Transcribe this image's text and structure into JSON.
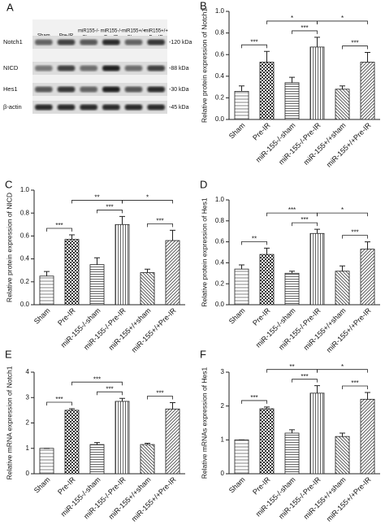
{
  "blot": {
    "panel_label": "A",
    "columns": [
      [
        "Sham"
      ],
      [
        "Pre-IR"
      ],
      [
        "miR155-/-",
        "Sham"
      ],
      [
        "miR155-/-",
        "Pre-IR"
      ],
      [
        "miR155+/+",
        "Sham"
      ],
      [
        "miR155+/+",
        "Pre-IR"
      ]
    ],
    "rows": [
      {
        "name": "Notch1",
        "size": "-120 kDa"
      },
      {
        "name": "NICD",
        "size": "-88 kDa"
      },
      {
        "name": "Hes1",
        "size": "-30 kDa"
      },
      {
        "name": "β-actin",
        "size": "-45 kDa"
      }
    ]
  },
  "chart_data": [
    {
      "type": "bar",
      "panel_label": "B",
      "ylabel": "Relative protein expression of Notch1",
      "categories": [
        "Sham",
        "Pre-IR",
        "miR-155-/-sham",
        "miR-155-/-Pre-IR",
        "miR-155+/+sham",
        "miR-155+/+Pre-IR"
      ],
      "values": [
        0.26,
        0.53,
        0.34,
        0.67,
        0.28,
        0.53
      ],
      "errors": [
        0.05,
        0.1,
        0.05,
        0.09,
        0.03,
        0.09
      ],
      "ylim": [
        0,
        1
      ],
      "yticks": [
        {
          "value": 0,
          "label": "0.0"
        },
        0.2,
        0.4,
        0.6,
        0.8,
        {
          "value": 1,
          "label": "1.0"
        }
      ],
      "color": "#222222",
      "significance": [
        {
          "from": 0,
          "to": 1,
          "label": "***"
        },
        {
          "from": 1,
          "to": 3,
          "label": "*"
        },
        {
          "from": 2,
          "to": 3,
          "label": "***"
        },
        {
          "from": 3,
          "to": 5,
          "label": "*"
        },
        {
          "from": 4,
          "to": 5,
          "label": "***"
        }
      ]
    },
    {
      "type": "bar",
      "panel_label": "C",
      "ylabel": "Relative protein expression of NICD",
      "categories": [
        "Sham",
        "Pre-IR",
        "miR-155-/-sham",
        "miR-155-/-Pre-IR",
        "miR-155+/+sham",
        "miR-155+/+Pre-IR"
      ],
      "values": [
        0.25,
        0.57,
        0.35,
        0.7,
        0.28,
        0.56
      ],
      "errors": [
        0.04,
        0.04,
        0.06,
        0.07,
        0.03,
        0.09
      ],
      "ylim": [
        0,
        1
      ],
      "yticks": [
        {
          "value": 0,
          "label": "0.0"
        },
        0.2,
        0.4,
        0.6,
        0.8,
        {
          "value": 1,
          "label": "1.0"
        }
      ],
      "color": "#222222",
      "significance": [
        {
          "from": 0,
          "to": 1,
          "label": "***"
        },
        {
          "from": 1,
          "to": 3,
          "label": "**"
        },
        {
          "from": 2,
          "to": 3,
          "label": "***"
        },
        {
          "from": 3,
          "to": 5,
          "label": "*"
        },
        {
          "from": 4,
          "to": 5,
          "label": "***"
        }
      ]
    },
    {
      "type": "bar",
      "panel_label": "D",
      "ylabel": "Relative protein expression of Hes1",
      "categories": [
        "Sham",
        "Pre-IR",
        "miR-155-/-sham",
        "miR-155-/-Pre-IR",
        "miR-155+/+sham",
        "miR-155+/+Pre-IR"
      ],
      "values": [
        0.34,
        0.48,
        0.3,
        0.68,
        0.32,
        0.53
      ],
      "errors": [
        0.04,
        0.06,
        0.02,
        0.04,
        0.05,
        0.07
      ],
      "ylim": [
        0,
        1
      ],
      "yticks": [
        {
          "value": 0,
          "label": "0.0"
        },
        0.2,
        0.4,
        0.6,
        0.8,
        {
          "value": 1,
          "label": "1.0"
        }
      ],
      "color": "#222222",
      "significance": [
        {
          "from": 0,
          "to": 1,
          "label": "**"
        },
        {
          "from": 1,
          "to": 3,
          "label": "***"
        },
        {
          "from": 2,
          "to": 3,
          "label": "***"
        },
        {
          "from": 3,
          "to": 5,
          "label": "*"
        },
        {
          "from": 4,
          "to": 5,
          "label": "***"
        }
      ]
    },
    {
      "type": "bar",
      "panel_label": "E",
      "ylabel": "Relative mRNA expression of Notch1",
      "categories": [
        "Sham",
        "Pre-IR",
        "miR-155-/-sham",
        "miR-155-/-Pre-IR",
        "miR-155+/+sham",
        "miR-155+/+Pre-IR"
      ],
      "values": [
        1.0,
        2.5,
        1.15,
        2.85,
        1.15,
        2.55
      ],
      "errors": [
        0,
        0.06,
        0.08,
        0.12,
        0.05,
        0.25
      ],
      "ylim": [
        0,
        4
      ],
      "yticks": [
        0,
        1,
        2,
        3,
        4
      ],
      "color": "#222222",
      "significance": [
        {
          "from": 0,
          "to": 1,
          "label": "***"
        },
        {
          "from": 1,
          "to": 3,
          "label": "***"
        },
        {
          "from": 2,
          "to": 3,
          "label": "***"
        },
        {
          "from": 4,
          "to": 5,
          "label": "***"
        }
      ]
    },
    {
      "type": "bar",
      "panel_label": "F",
      "ylabel": "Relative mRNAs expression of Hes1",
      "categories": [
        "Sham",
        "Pre-IR",
        "miR-155-/-sham",
        "miR-155-/-Pre-IR",
        "miR-155+/+sham",
        "miR-155+/+Pre-IR"
      ],
      "values": [
        1.0,
        1.92,
        1.2,
        2.38,
        1.1,
        2.2
      ],
      "errors": [
        0,
        0.05,
        0.1,
        0.22,
        0.1,
        0.2
      ],
      "ylim": [
        0,
        3
      ],
      "yticks": [
        0,
        1,
        2,
        3
      ],
      "color": "#222222",
      "significance": [
        {
          "from": 0,
          "to": 1,
          "label": "***"
        },
        {
          "from": 1,
          "to": 3,
          "label": "**"
        },
        {
          "from": 2,
          "to": 3,
          "label": "***"
        },
        {
          "from": 3,
          "to": 5,
          "label": "*"
        },
        {
          "from": 4,
          "to": 5,
          "label": "***"
        }
      ]
    }
  ]
}
